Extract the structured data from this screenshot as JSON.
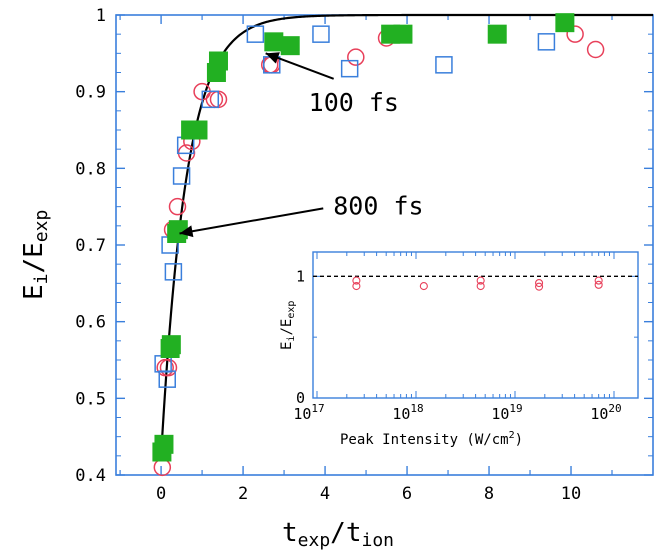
{
  "chart_data": [
    {
      "type": "scatter",
      "title": "",
      "xlabel_main": "t",
      "xlabel_sub1": "exp",
      "xlabel_sep": "/t",
      "xlabel_sub2": "ion",
      "ylabel_main": "E",
      "ylabel_sub1": "i",
      "ylabel_sep": "/E",
      "ylabel_sub2": "exp",
      "xlim": [
        -1.1,
        12
      ],
      "ylim": [
        0.4,
        1.0
      ],
      "xticks": [
        0,
        2,
        4,
        6,
        8,
        10
      ],
      "xtick_labels": [
        "0",
        "2",
        "4",
        "6",
        "8",
        "10"
      ],
      "yticks": [
        0.4,
        0.5,
        0.6,
        0.7,
        0.8,
        0.9,
        1.0
      ],
      "ytick_labels": [
        "0.4",
        "0.5",
        "0.6",
        "0.7",
        "0.8",
        "0.9",
        "1"
      ],
      "grid": false,
      "colors": {
        "frame": "#3a7fdc",
        "circle": "#e8405a",
        "square_open": "#3a7fdc",
        "square_filled": "#22b022",
        "fit": "#000000"
      },
      "series": [
        {
          "marker": "open-circle",
          "points": [
            [
              0.03,
              0.41
            ],
            [
              0.1,
              0.54
            ],
            [
              0.18,
              0.54
            ],
            [
              0.28,
              0.72
            ],
            [
              0.4,
              0.75
            ],
            [
              0.62,
              0.82
            ],
            [
              0.75,
              0.835
            ],
            [
              1.0,
              0.9
            ],
            [
              1.3,
              0.89
            ],
            [
              1.4,
              0.89
            ],
            [
              2.65,
              0.935
            ],
            [
              2.7,
              0.935
            ],
            [
              4.75,
              0.945
            ],
            [
              5.5,
              0.97
            ],
            [
              10.1,
              0.975
            ],
            [
              10.6,
              0.955
            ]
          ]
        },
        {
          "marker": "open-square",
          "points": [
            [
              0.05,
              0.545
            ],
            [
              0.15,
              0.525
            ],
            [
              0.22,
              0.7
            ],
            [
              0.3,
              0.665
            ],
            [
              0.5,
              0.79
            ],
            [
              0.6,
              0.83
            ],
            [
              1.2,
              0.89
            ],
            [
              2.3,
              0.975
            ],
            [
              2.7,
              0.935
            ],
            [
              3.9,
              0.975
            ],
            [
              4.6,
              0.93
            ],
            [
              6.9,
              0.935
            ],
            [
              9.4,
              0.965
            ]
          ]
        },
        {
          "marker": "filled-square",
          "points": [
            [
              0.02,
              0.43
            ],
            [
              0.07,
              0.44
            ],
            [
              0.22,
              0.565
            ],
            [
              0.25,
              0.57
            ],
            [
              0.38,
              0.715
            ],
            [
              0.42,
              0.72
            ],
            [
              0.72,
              0.85
            ],
            [
              0.9,
              0.85
            ],
            [
              1.35,
              0.925
            ],
            [
              1.4,
              0.94
            ],
            [
              2.75,
              0.965
            ],
            [
              3.15,
              0.96
            ],
            [
              5.6,
              0.975
            ],
            [
              5.9,
              0.975
            ],
            [
              8.2,
              0.975
            ],
            [
              9.85,
              0.99
            ]
          ]
        },
        {
          "marker": "line",
          "fit": "1 - 0.575*exp(-x/0.62)"
        }
      ],
      "annotations": [
        {
          "text": "100 fs",
          "x": 3.6,
          "y": 0.875,
          "arrow_to": [
            2.55,
            0.95
          ]
        },
        {
          "text": "800 fs",
          "x": 4.2,
          "y": 0.74,
          "arrow_to": [
            0.45,
            0.715
          ]
        }
      ]
    },
    {
      "type": "scatter",
      "title": "",
      "xlabel": "Peak Intensity (W/cm",
      "xlabel_sup": "2",
      "xlabel_end": ")",
      "ylabel_main": "E",
      "ylabel_sub1": "i",
      "ylabel_sep": "/E",
      "ylabel_sub2": "exp",
      "xscale": "log",
      "xlim": [
        1e+17,
        1e+20
      ],
      "ylim": [
        0,
        1.2
      ],
      "xtick_labels": [
        {
          "base": "10",
          "exp": "17"
        },
        {
          "base": "10",
          "exp": "18"
        },
        {
          "base": "10",
          "exp": "19"
        },
        {
          "base": "10",
          "exp": "20"
        }
      ],
      "ytick_labels": [
        "0",
        "1"
      ],
      "reference_line": {
        "y": 1.0,
        "style": "dashed"
      },
      "series": [
        {
          "marker": "open-circle",
          "points": [
            [
              2.5e+17,
              0.965
            ],
            [
              2.5e+17,
              0.92
            ],
            [
              1.2e+18,
              0.92
            ],
            [
              4.5e+18,
              0.965
            ],
            [
              4.5e+18,
              0.92
            ],
            [
              1.75e+19,
              0.945
            ],
            [
              1.75e+19,
              0.915
            ],
            [
              7e+19,
              0.965
            ],
            [
              7e+19,
              0.93
            ]
          ]
        }
      ]
    }
  ]
}
